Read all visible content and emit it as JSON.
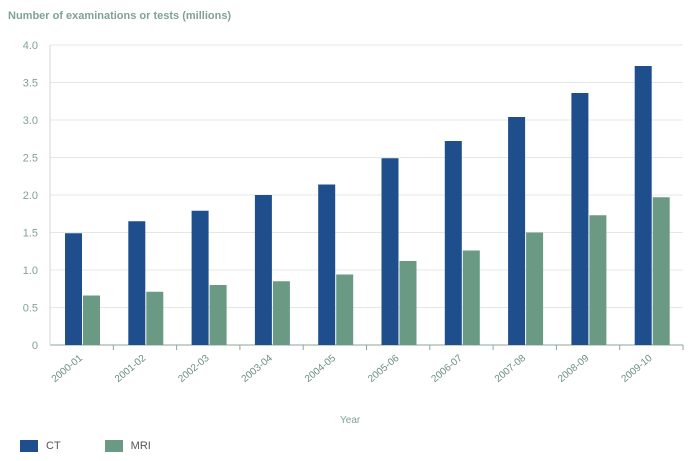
{
  "chart_data": {
    "type": "bar",
    "ylabel": "Number of examinations or tests (millions)",
    "xlabel": "Year",
    "categories": [
      "2000-01",
      "2001-02",
      "2002-03",
      "2003-04",
      "2004-05",
      "2005-06",
      "2006-07",
      "2007-08",
      "2008-09",
      "2009-10"
    ],
    "series": [
      {
        "name": "CT",
        "color": "#1f4e8c",
        "values": [
          1.49,
          1.65,
          1.79,
          2.0,
          2.14,
          2.49,
          2.72,
          3.04,
          3.36,
          3.72
        ]
      },
      {
        "name": "MRI",
        "color": "#6b9a84",
        "values": [
          0.66,
          0.71,
          0.8,
          0.85,
          0.94,
          1.12,
          1.26,
          1.5,
          1.73,
          1.97
        ]
      }
    ],
    "ylim": [
      0,
      4.0
    ],
    "yticks": [
      "0",
      "0.5",
      "1.0",
      "1.5",
      "2.0",
      "2.5",
      "3.0",
      "3.5",
      "4.0"
    ],
    "grid": true,
    "legend_position": "bottom-left"
  }
}
